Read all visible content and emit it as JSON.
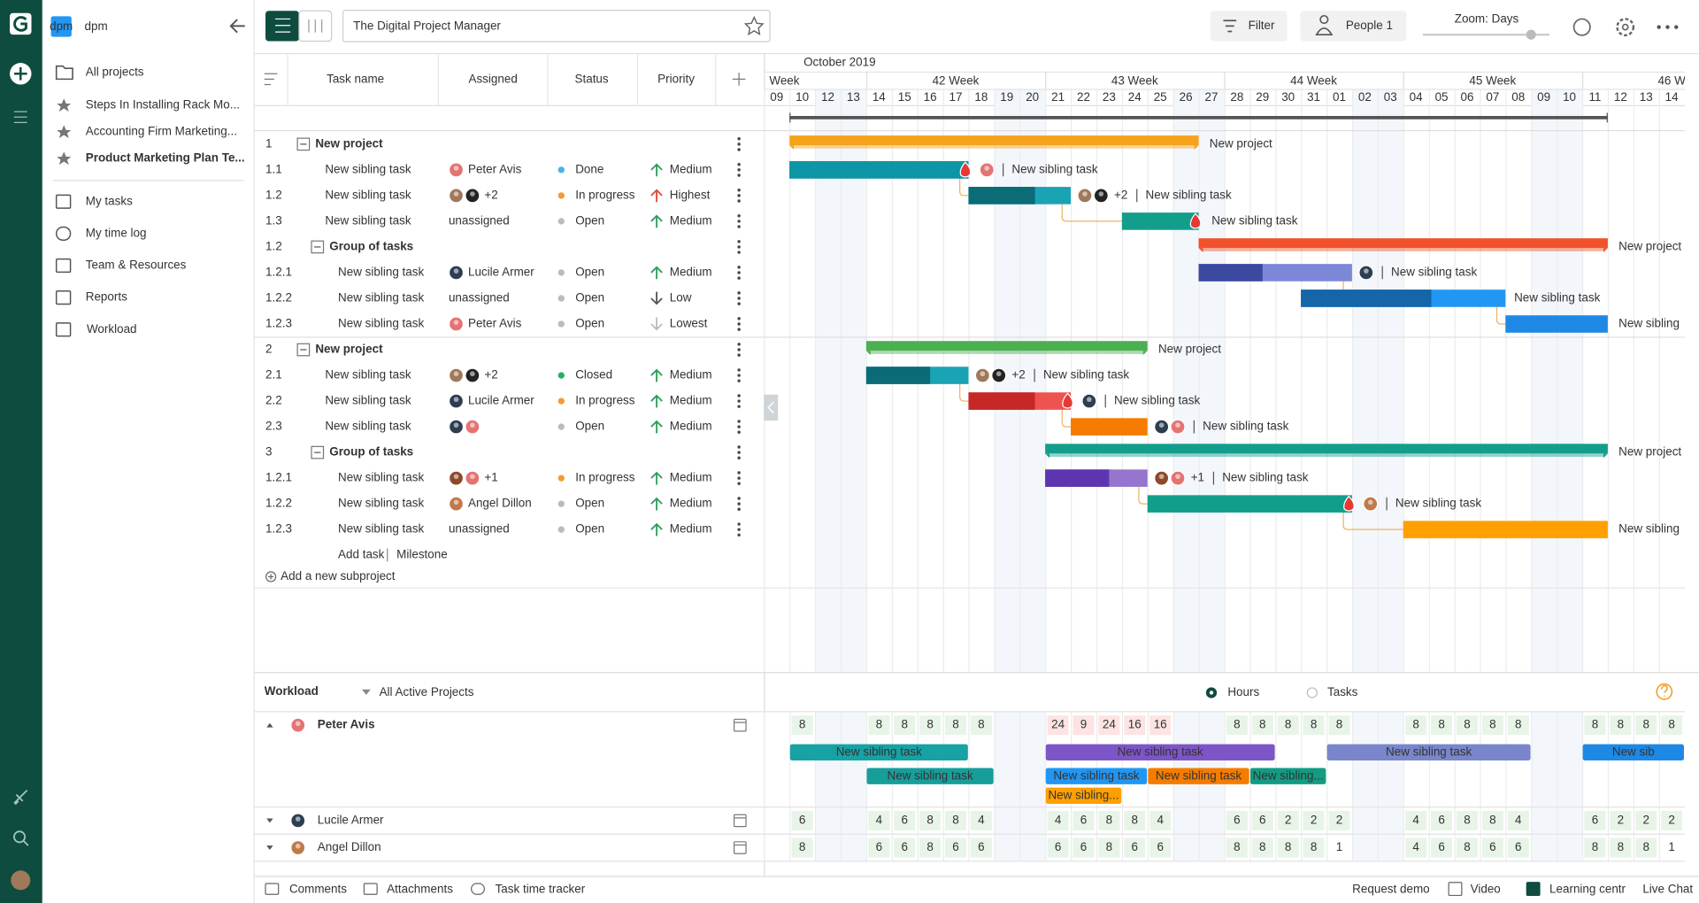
{
  "sidebar": {
    "badge": "dpm",
    "workspace": "dpm",
    "all_projects": "All projects",
    "favorites": [
      "Steps In Installing Rack Mo...",
      "Accounting Firm Marketing...",
      "Product Marketing Plan Te..."
    ],
    "menu": [
      "My tasks",
      "My time log",
      "Team & Resources",
      "Reports",
      "Workload"
    ]
  },
  "header": {
    "title": "The Digital Project Manager",
    "filter": "Filter",
    "people": "People 1",
    "zoom": "Zoom: Days"
  },
  "grid": {
    "columns": [
      "Task name",
      "Assigned",
      "Status",
      "Priority"
    ],
    "add_task": "Add task",
    "milestone": "Milestone",
    "add_subproject": "Add a new subproject"
  },
  "timeline": {
    "month": {
      "label": "October 2019",
      "start": 1
    },
    "weeks": [
      {
        "label": "Week",
        "start": 0
      },
      {
        "label": "42 Week",
        "start": 4
      },
      {
        "label": "43 Week",
        "start": 11
      },
      {
        "label": "44 Week",
        "start": 18
      },
      {
        "label": "45 Week",
        "start": 25
      },
      {
        "label": "46 W",
        "start": 32
      }
    ],
    "days": [
      "09",
      "10",
      "12",
      "13",
      "14",
      "15",
      "16",
      "17",
      "18",
      "19",
      "20",
      "21",
      "22",
      "23",
      "24",
      "25",
      "26",
      "27",
      "28",
      "29",
      "30",
      "31",
      "01",
      "02",
      "03",
      "04",
      "05",
      "06",
      "07",
      "08",
      "09",
      "10",
      "11",
      "12",
      "13",
      "14"
    ],
    "weekend": [
      2,
      3,
      9,
      10,
      16,
      17,
      23,
      24,
      30,
      31
    ]
  },
  "rows": [
    {
      "num": "1",
      "name": "New project",
      "type": "project",
      "bar": {
        "start": 1,
        "end": 17,
        "color": "#f7a21b",
        "label": "New project"
      }
    },
    {
      "num": "1.1",
      "name": "New sibling task",
      "type": "task",
      "assigned": "Peter Avis",
      "avatars": [
        "#e57373"
      ],
      "status": "Done",
      "status_color": "#4ab3e6",
      "priority": "Medium",
      "priority_color": "#2e9e5b",
      "priority_arrow": "up",
      "bar": {
        "start": 1,
        "end": 8,
        "progress": 8,
        "color": "#17a2b1",
        "progress_color": "#0e95a5",
        "overdue": true,
        "label": "New sibling task"
      }
    },
    {
      "num": "1.2",
      "name": "New sibling task",
      "type": "task",
      "assigned": "+2",
      "avatars": [
        "#a0785a",
        "#222222"
      ],
      "status": "In progress",
      "status_color": "#f39c34",
      "priority": "Highest",
      "priority_color": "#e0483e",
      "priority_arrow": "up",
      "bar": {
        "start": 8,
        "end": 12,
        "progress": 10.6,
        "color": "#1aa3b3",
        "progress_color": "#0b6b76",
        "label": "New sibling task"
      }
    },
    {
      "num": "1.3",
      "name": "New sibling task",
      "type": "task",
      "assigned": "unassigned",
      "status": "Open",
      "status_color": "#bbbbbb",
      "priority": "Medium",
      "priority_color": "#2e9e5b",
      "priority_arrow": "up",
      "bar": {
        "start": 14,
        "end": 17,
        "color": "#139e8c",
        "overdue": true,
        "label": "New sibling task"
      }
    },
    {
      "num": "1.2",
      "name": "Group of tasks",
      "type": "group",
      "bar": {
        "start": 17,
        "end": 33,
        "color": "#f0532c",
        "label": "New project"
      }
    },
    {
      "num": "1.2.1",
      "name": "New sibling task",
      "type": "task",
      "level": 2,
      "assigned": "Lucile Armer",
      "avatars": [
        "#2c3e50"
      ],
      "status": "Open",
      "status_color": "#bbbbbb",
      "priority": "Medium",
      "priority_color": "#2e9e5b",
      "priority_arrow": "up",
      "bar": {
        "start": 17,
        "end": 23,
        "progress": 19.5,
        "color": "#7c87d8",
        "progress_color": "#3b4a9f",
        "label": "New sibling task"
      }
    },
    {
      "num": "1.2.2",
      "name": "New sibling task",
      "type": "task",
      "level": 2,
      "assigned": "unassigned",
      "status": "Open",
      "status_color": "#bbbbbb",
      "priority": "Low",
      "priority_color": "#555555",
      "priority_arrow": "down",
      "bar": {
        "start": 21,
        "end": 29,
        "progress": 26.1,
        "color": "#2196f3",
        "progress_color": "#1565a8",
        "label": "New sibling task"
      }
    },
    {
      "num": "1.2.3",
      "name": "New sibling task",
      "type": "task",
      "level": 2,
      "assigned": "Peter Avis",
      "avatars": [
        "#e57373"
      ],
      "status": "Open",
      "status_color": "#bbbbbb",
      "priority": "Lowest",
      "priority_color": "#bbbbbb",
      "priority_arrow": "down",
      "bar": {
        "start": 29,
        "end": 33,
        "color": "#1e88e5",
        "label": "New sibling"
      }
    },
    {
      "num": "2",
      "name": "New project",
      "type": "project",
      "bar": {
        "start": 4,
        "end": 15,
        "color": "#4caf50",
        "label": "New project"
      }
    },
    {
      "num": "2.1",
      "name": "New sibling task",
      "type": "task",
      "assigned": "+2",
      "avatars": [
        "#a0785a",
        "#222222"
      ],
      "status": "Closed",
      "status_color": "#27ae60",
      "priority": "Medium",
      "priority_color": "#2e9e5b",
      "priority_arrow": "up",
      "bar": {
        "start": 4,
        "end": 8,
        "progress": 6.5,
        "color": "#1aa3b3",
        "progress_color": "#0b6b76",
        "label": "New sibling task"
      }
    },
    {
      "num": "2.2",
      "name": "New sibling task",
      "type": "task",
      "assigned": "Lucile Armer",
      "avatars": [
        "#2c3e50"
      ],
      "status": "In progress",
      "status_color": "#f39c34",
      "priority": "Medium",
      "priority_color": "#2e9e5b",
      "priority_arrow": "up",
      "bar": {
        "start": 8,
        "end": 12,
        "progress": 10.6,
        "color": "#ef5350",
        "progress_color": "#c62828",
        "overdue": true,
        "label": "New sibling task"
      }
    },
    {
      "num": "2.3",
      "name": "New sibling task",
      "type": "task",
      "avatars": [
        "#2c3e50",
        "#e57373"
      ],
      "status": "Open",
      "status_color": "#bbbbbb",
      "priority": "Medium",
      "priority_color": "#2e9e5b",
      "priority_arrow": "up",
      "bar": {
        "start": 12,
        "end": 15,
        "color": "#f57c00",
        "label": "New sibling task"
      }
    },
    {
      "num": "3",
      "name": "Group of tasks",
      "type": "group",
      "bar": {
        "start": 11,
        "end": 33,
        "color": "#139e8c",
        "label": "New project"
      }
    },
    {
      "num": "1.2.1",
      "name": "New sibling task",
      "type": "task",
      "level": 2,
      "assigned": "+1",
      "avatars": [
        "#8d4a2a",
        "#e57373"
      ],
      "status": "In progress",
      "status_color": "#f39c34",
      "priority": "Medium",
      "priority_color": "#2e9e5b",
      "priority_arrow": "up",
      "bar": {
        "start": 11,
        "end": 15,
        "progress": 13.5,
        "color": "#9575cd",
        "progress_color": "#5e35b1",
        "label": "New sibling task"
      }
    },
    {
      "num": "1.2.2",
      "name": "New sibling task",
      "type": "task",
      "level": 2,
      "assigned": "Angel Dillon",
      "avatars": [
        "#c0794a"
      ],
      "status": "Open",
      "status_color": "#bbbbbb",
      "priority": "Medium",
      "priority_color": "#2e9e5b",
      "priority_arrow": "up",
      "bar": {
        "start": 15,
        "end": 23,
        "color": "#139e8c",
        "overdue": true,
        "label": "New sibling task"
      }
    },
    {
      "num": "1.2.3",
      "name": "New sibling task",
      "type": "task",
      "level": 2,
      "assigned": "unassigned",
      "status": "Open",
      "status_color": "#bbbbbb",
      "priority": "Medium",
      "priority_color": "#2e9e5b",
      "priority_arrow": "up",
      "bar": {
        "start": 25,
        "end": 33,
        "color": "#ffa000",
        "label": "New sibling"
      }
    }
  ],
  "links": [
    [
      1,
      2
    ],
    [
      2,
      3
    ],
    [
      5,
      6
    ],
    [
      6,
      7
    ],
    [
      9,
      10
    ],
    [
      10,
      11
    ],
    [
      13,
      14
    ],
    [
      14,
      15
    ]
  ],
  "workload": {
    "title": "Workload",
    "filter": "All Active Projects",
    "modes": [
      "Hours",
      "Tasks"
    ],
    "capacity": 8,
    "people": [
      {
        "name": "Peter Avis",
        "avatar": "#e57373",
        "hours": [
          null,
          8,
          null,
          null,
          8,
          8,
          8,
          8,
          8,
          null,
          null,
          24,
          9,
          24,
          16,
          16,
          null,
          null,
          8,
          8,
          8,
          8,
          8,
          null,
          null,
          8,
          8,
          8,
          8,
          8,
          null,
          null,
          8,
          8,
          8,
          8
        ],
        "tasks": [
          {
            "label": "New sibling task",
            "lane": 0,
            "start": 1,
            "end": 8,
            "color": "#17a2a5"
          },
          {
            "label": "New sibling task",
            "lane": 1,
            "start": 4,
            "end": 9,
            "color": "#179e9a"
          },
          {
            "label": "New sibling task",
            "lane": 0,
            "start": 11,
            "end": 20,
            "color": "#7d55c7"
          },
          {
            "label": "New sibling task",
            "lane": 1,
            "start": 11,
            "end": 15,
            "color": "#2196f3"
          },
          {
            "label": "New sibling task",
            "lane": 1,
            "start": 15,
            "end": 19,
            "color": "#f57c00"
          },
          {
            "label": "New sibling...",
            "lane": 1,
            "start": 19,
            "end": 22,
            "color": "#139b83"
          },
          {
            "label": "New sibling...",
            "lane": 2,
            "start": 11,
            "end": 14,
            "color": "#ffa000"
          },
          {
            "label": "New sibling task",
            "lane": 0,
            "start": 22,
            "end": 30,
            "color": "#7986cb"
          },
          {
            "label": "New sib",
            "lane": 0,
            "start": 32,
            "end": 36,
            "color": "#1e88e5"
          }
        ]
      },
      {
        "name": "Lucile Armer",
        "avatar": "#2c3e50",
        "hours": [
          null,
          6,
          null,
          null,
          4,
          6,
          8,
          8,
          4,
          null,
          null,
          4,
          6,
          8,
          8,
          4,
          null,
          null,
          6,
          6,
          2,
          2,
          2,
          null,
          null,
          4,
          6,
          8,
          8,
          4,
          null,
          null,
          6,
          2,
          2,
          2
        ]
      },
      {
        "name": "Angel Dillon",
        "avatar": "#c0794a",
        "hours": [
          null,
          8,
          null,
          null,
          6,
          6,
          8,
          6,
          6,
          null,
          null,
          6,
          6,
          8,
          6,
          6,
          null,
          null,
          8,
          8,
          8,
          8,
          1,
          null,
          null,
          4,
          6,
          8,
          6,
          6,
          null,
          null,
          8,
          8,
          8,
          1
        ]
      }
    ]
  },
  "footer": {
    "left": [
      "Comments",
      "Attachments",
      "Task time tracker"
    ],
    "right": [
      "Request demo",
      "Video",
      "Learning centr",
      "Live Chat"
    ]
  }
}
